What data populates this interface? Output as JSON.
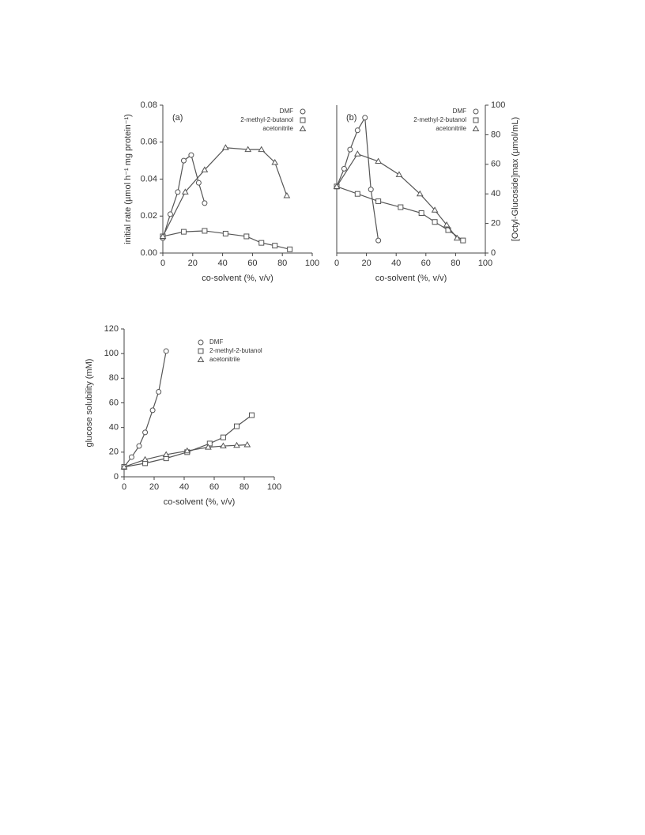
{
  "chart_data": [
    {
      "type": "line",
      "annotation": "(a)",
      "x_label": "co-solvent (%, v/v)",
      "y_label": "initial rate (µmol h⁻¹ mg protein⁻¹)",
      "xlim": [
        0,
        100
      ],
      "xticks": [
        0,
        20,
        40,
        60,
        80,
        100
      ],
      "ylim": [
        0,
        0.08
      ],
      "yticks": [
        {
          "value": 0,
          "label": "0.00"
        },
        0.02,
        0.04,
        0.06,
        0.08
      ],
      "y_axis_side": "left",
      "legend_position": "upper right",
      "legend_marker_side": "right",
      "series": [
        {
          "name": "DMF",
          "marker": "circle",
          "color": "#555555",
          "x": [
            0,
            5,
            10,
            14,
            19,
            24,
            28
          ],
          "values": [
            0.008,
            0.021,
            0.033,
            0.05,
            0.053,
            0.038,
            0.027
          ]
        },
        {
          "name": "2-methyl-2-butanol",
          "marker": "square",
          "color": "#555555",
          "x": [
            0,
            14,
            28,
            42,
            56,
            66,
            75,
            85
          ],
          "values": [
            0.009,
            0.0115,
            0.012,
            0.0105,
            0.009,
            0.0055,
            0.004,
            0.002
          ]
        },
        {
          "name": "acetonitrile",
          "marker": "triangle",
          "color": "#555555",
          "x": [
            0,
            15,
            28,
            42,
            57,
            66,
            75,
            83
          ],
          "values": [
            0.009,
            0.033,
            0.045,
            0.057,
            0.056,
            0.056,
            0.049,
            0.031
          ]
        }
      ]
    },
    {
      "type": "line",
      "annotation": "(b)",
      "x_label": "co-solvent (%, v/v)",
      "y_label": "[Octyl-Glucoside]max (µmol/mL)",
      "xlim": [
        0,
        100
      ],
      "xticks": [
        0,
        20,
        40,
        60,
        80,
        100
      ],
      "ylim": [
        0,
        100
      ],
      "yticks": [
        0,
        20,
        40,
        60,
        80,
        100
      ],
      "y_axis_side": "right",
      "legend_position": "upper right",
      "legend_marker_side": "right",
      "series": [
        {
          "name": "DMF",
          "marker": "circle",
          "color": "#555555",
          "x": [
            0,
            5,
            9,
            14,
            19,
            23,
            28
          ],
          "values": [
            45,
            57,
            70,
            83,
            91.5,
            43,
            8.5
          ]
        },
        {
          "name": "2-methyl-2-butanol",
          "marker": "square",
          "color": "#555555",
          "x": [
            0,
            14,
            28,
            43,
            57,
            66,
            75,
            85
          ],
          "values": [
            45,
            40,
            35,
            31,
            27,
            21,
            15.5,
            8.5
          ]
        },
        {
          "name": "acetonitrile",
          "marker": "triangle",
          "color": "#555555",
          "x": [
            0,
            14,
            28,
            42,
            56,
            66,
            74,
            81
          ],
          "values": [
            45,
            67,
            62,
            53,
            40,
            29,
            19,
            10
          ]
        }
      ]
    },
    {
      "type": "line",
      "x_label": "co-solvent (%, v/v)",
      "y_label": "glucose solubility (mM)",
      "xlim": [
        0,
        100
      ],
      "xticks": [
        0,
        20,
        40,
        60,
        80,
        100
      ],
      "ylim": [
        0,
        120
      ],
      "yticks": [
        0,
        20,
        40,
        60,
        80,
        100,
        120
      ],
      "y_axis_side": "left",
      "legend_position": "upper center",
      "legend_marker_side": "left",
      "series": [
        {
          "name": "DMF",
          "marker": "circle",
          "color": "#555555",
          "x": [
            0,
            5,
            10,
            14,
            19,
            23,
            28
          ],
          "values": [
            8,
            16,
            25,
            36,
            54,
            69,
            102
          ]
        },
        {
          "name": "2-methyl-2-butanol",
          "marker": "square",
          "color": "#555555",
          "x": [
            0,
            14,
            28,
            42,
            57,
            66,
            75,
            85
          ],
          "values": [
            8,
            11,
            15,
            20,
            27,
            32,
            41,
            50
          ]
        },
        {
          "name": "acetonitrile",
          "marker": "triangle",
          "color": "#555555",
          "x": [
            0,
            14,
            28,
            42,
            56,
            66,
            75,
            82
          ],
          "values": [
            8,
            14,
            18,
            21,
            24,
            25,
            25.5,
            26
          ]
        }
      ]
    }
  ]
}
